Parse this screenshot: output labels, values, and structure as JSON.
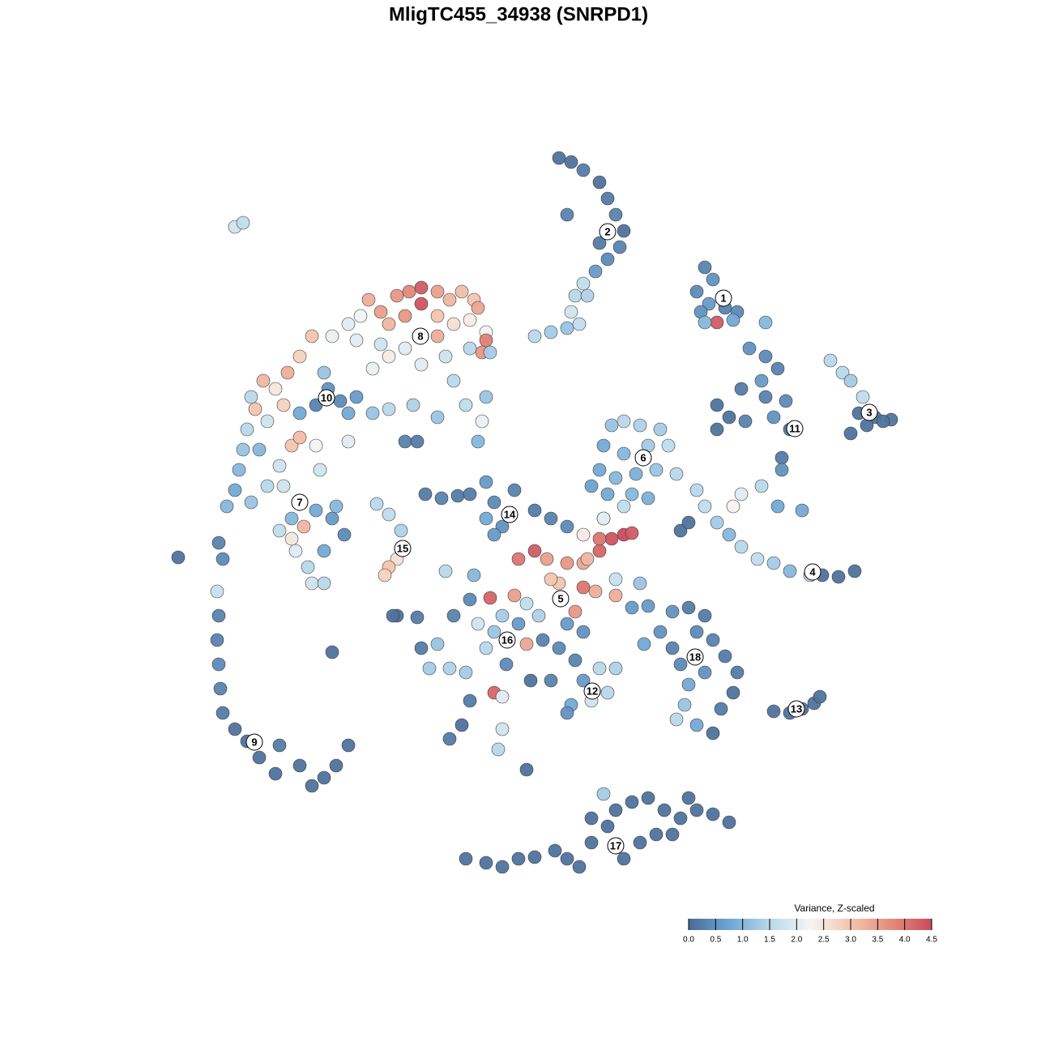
{
  "chart_data": {
    "type": "scatter",
    "title": "MligTC455_34938 (SNRPD1)",
    "colorbar_title": "Variance, Z-scaled",
    "xlim": [
      0,
      96
    ],
    "ylim": [
      0,
      96
    ],
    "clim": [
      0,
      4.5
    ],
    "colorbar_ticks": [
      {
        "value": 0,
        "label": "0.0"
      },
      0.5,
      {
        "value": 1,
        "label": "1.0"
      },
      1.5,
      {
        "value": 2,
        "label": "2.0"
      },
      2.5,
      {
        "value": 3,
        "label": "3.0"
      },
      3.5,
      {
        "value": 4,
        "label": "4.0"
      },
      4.5
    ],
    "colorscale": [
      {
        "value": 0,
        "color": "#4a6b95"
      },
      {
        "value": 0.75,
        "color": "#6ea6d4"
      },
      {
        "value": 1.5,
        "color": "#b8d8ea"
      },
      {
        "value": 2.25,
        "color": "#f5f5f5"
      },
      {
        "value": 3,
        "color": "#f3c5ae"
      },
      {
        "value": 3.75,
        "color": "#e48c7c"
      },
      {
        "value": 4.5,
        "color": "#c94b5b"
      }
    ],
    "x": [
      71,
      72,
      70,
      71.5,
      73.5,
      75,
      70.5,
      72.5,
      71,
      74.5,
      78.5,
      86.5,
      88,
      89,
      90.5,
      90,
      92,
      94,
      89,
      91,
      93,
      76.5,
      78.5,
      80,
      78,
      78.5,
      75.5,
      72.5,
      74,
      76,
      79.5,
      81,
      81.5,
      80.5,
      80.5,
      78,
      75.5,
      74.5,
      80,
      83,
      72.5,
      59.5,
      61,
      63,
      65.5,
      58.5,
      61,
      64,
      66.5,
      58,
      60,
      62.5,
      65,
      67.5,
      59,
      62,
      64,
      61,
      58.5,
      57,
      70,
      71,
      72.5,
      74,
      75.5,
      77.5,
      79.5,
      81.5,
      84,
      85.5,
      87.5,
      89.5,
      68,
      69,
      29.5,
      31,
      33,
      34.5,
      36,
      36,
      38,
      39.5,
      41,
      42.5,
      43,
      34,
      32,
      38,
      40,
      42,
      44,
      43.5,
      44,
      28.5,
      27,
      25,
      28,
      31,
      34,
      38,
      39,
      36,
      32,
      30,
      42,
      44.5,
      22.5,
      21,
      19.5,
      18,
      16.5,
      15,
      15.5,
      17,
      19,
      24,
      24.5,
      26,
      28,
      23,
      27,
      30,
      32,
      35,
      38,
      40,
      41.5,
      44,
      43.5,
      43,
      34,
      35.5,
      27,
      21,
      14.5,
      14,
      13.5,
      13,
      12,
      15,
      17,
      18.5,
      20,
      21,
      23,
      23.5,
      19,
      20,
      21.5,
      23,
      25,
      26.5,
      24,
      20,
      20.5,
      22,
      22.5,
      24,
      18.5,
      25.5,
      16,
      11,
      11.5,
      10.8,
      11,
      10.8,
      11,
      11.2,
      11.5,
      13,
      14.5,
      16,
      18,
      18.5,
      21,
      22.5,
      24,
      25.5,
      27,
      6,
      13,
      30.5,
      32,
      33.5,
      33,
      32,
      31.5,
      36.5,
      38.5,
      40.5,
      42,
      44,
      45,
      47.5,
      44,
      46,
      50,
      52,
      54,
      45,
      50,
      48,
      51.5,
      54,
      56,
      58,
      59.5,
      61,
      62,
      58,
      56.5,
      53,
      52,
      56,
      57.5,
      44.5,
      47.5,
      55,
      60,
      49,
      50.5,
      54,
      56,
      51,
      48,
      46,
      60,
      63,
      62,
      58.5,
      56,
      42,
      40,
      38,
      36,
      37,
      39.5,
      41.5,
      44,
      45,
      43,
      46.5,
      49,
      45,
      46,
      42,
      41,
      39.5,
      46,
      45.5,
      39,
      42.5,
      33,
      35.5,
      49.5,
      53,
      55,
      58,
      60,
      59,
      57,
      54.5,
      54,
      56,
      52,
      64,
      67,
      69,
      71,
      70,
      72,
      73.5,
      75,
      74.5,
      73,
      67,
      68,
      69,
      68.5,
      67.5,
      70,
      72,
      63.5,
      65.5,
      71,
      79.5,
      81.5,
      83,
      84.5,
      85.2,
      41.5,
      44,
      46,
      48,
      50,
      52.5,
      54,
      55.5,
      57,
      59,
      60,
      62,
      64,
      66,
      68,
      70,
      72,
      74,
      69,
      63,
      61,
      65,
      58.5,
      57,
      67,
      25,
      32.5,
      49,
      14,
      53,
      54.5,
      56,
      58,
      59,
      60,
      61,
      60.5,
      59,
      57.5,
      56,
      55,
      54.5,
      54,
      52,
      50,
      55.5,
      56.5,
      58,
      54
    ],
    "y": [
      79,
      77.5,
      76,
      74.5,
      74,
      73.5,
      73.5,
      72.2,
      72.2,
      72.5,
      72.2,
      67.5,
      66,
      65,
      63,
      61,
      60.5,
      60.2,
      58.5,
      59.5,
      60,
      69,
      68,
      66.5,
      65,
      63,
      64,
      62,
      60.5,
      60,
      60.5,
      62.5,
      59,
      55.5,
      54,
      52,
      51,
      49.5,
      49.5,
      49,
      59,
      59.5,
      60,
      59.5,
      59,
      57,
      56,
      57,
      57,
      54,
      53,
      53.5,
      54,
      53.5,
      51,
      51,
      50.5,
      49.5,
      48,
      52,
      51.5,
      49.5,
      47.5,
      46,
      44.5,
      43,
      42.5,
      41.5,
      41,
      41,
      40.8,
      41.5,
      46.5,
      47.5,
      75,
      73.5,
      75.5,
      76,
      76.5,
      74.5,
      76,
      75,
      76,
      75,
      74,
      73,
      72,
      73,
      72,
      72.5,
      71,
      68.5,
      70,
      73,
      72,
      70.5,
      70,
      69.5,
      69,
      70.5,
      68,
      67,
      68,
      66.5,
      69,
      68.5,
      70.5,
      68,
      66,
      64,
      65,
      63,
      61.5,
      60,
      62,
      66,
      64,
      62.5,
      63,
      62,
      61,
      61,
      61.5,
      62,
      60.5,
      65,
      62,
      63,
      60,
      57.5,
      57.5,
      57.5,
      57.5,
      61,
      59,
      56.5,
      54,
      51.5,
      49.5,
      50,
      52,
      54.5,
      57,
      58,
      57,
      54,
      52,
      48,
      47,
      49,
      48,
      46,
      44,
      45.5,
      44,
      42,
      40,
      40,
      46.5,
      49.5,
      56.5,
      45,
      43,
      39,
      36,
      33,
      30,
      27,
      24,
      22,
      20.5,
      18.5,
      16.5,
      20,
      17.5,
      15,
      16,
      17.5,
      20,
      43.2,
      84,
      49.8,
      48.5,
      46.5,
      43,
      42,
      41,
      51,
      50.5,
      50.8,
      51,
      52.5,
      50,
      51.5,
      48,
      47,
      49,
      48,
      47,
      46,
      44,
      43,
      43,
      42.5,
      42.5,
      44,
      45.5,
      46,
      46.2,
      45.5,
      43,
      40,
      40.5,
      39.5,
      39,
      38.2,
      38.5,
      36.5,
      38.5,
      37.5,
      36,
      35,
      34,
      33,
      35,
      36,
      40.5,
      40,
      37,
      48,
      46,
      38,
      36,
      32.5,
      32,
      29.5,
      29.5,
      29,
      32,
      34,
      35,
      30,
      32.5,
      26.5,
      26,
      25.5,
      22.5,
      20.8,
      22,
      19.5,
      41.5,
      41,
      36,
      35.8,
      28,
      32,
      30.5,
      29.5,
      29.5,
      26.5,
      25.5,
      25,
      24,
      28,
      28,
      37.2,
      36.5,
      37,
      36,
      34,
      33,
      31,
      29,
      26.5,
      24.5,
      32,
      30,
      27.5,
      25,
      23.2,
      22.5,
      21.5,
      32.5,
      34,
      29,
      24.2,
      24,
      24.5,
      25.2,
      26,
      6,
      5.5,
      5,
      6,
      6.2,
      7,
      6,
      5,
      8,
      10,
      12,
      13,
      13.5,
      12,
      11,
      12,
      11.5,
      10.5,
      13.5,
      8,
      6,
      9,
      14,
      11,
      9,
      31.5,
      36,
      17,
      84.5,
      92.5,
      92,
      91,
      89.5,
      87.5,
      85.5,
      83.5,
      81.5,
      80,
      78.5,
      77,
      75.5,
      73.5,
      71.5,
      71,
      70.5,
      72,
      75.5,
      82,
      85.5
    ],
    "values": [
      0.3,
      0.5,
      0.4,
      0.6,
      0.3,
      0.4,
      0.5,
      4.3,
      1.0,
      0.8,
      1.0,
      1.5,
      1.5,
      1.3,
      1.6,
      0.1,
      0.1,
      0.1,
      0.1,
      0.1,
      0.1,
      0.5,
      0.4,
      0.3,
      0.6,
      0.3,
      0.2,
      0.1,
      0.1,
      0.3,
      0.5,
      0.4,
      0.1,
      0.2,
      0.5,
      1.5,
      2.0,
      2.3,
      0.8,
      0.8,
      0.1,
      1.2,
      1.5,
      1.4,
      1.3,
      0.8,
      1.0,
      1.3,
      1.6,
      0.8,
      1.0,
      0.9,
      1.2,
      1.5,
      0.8,
      1.0,
      0.9,
      1.6,
      2.2,
      0.7,
      1.5,
      1.6,
      1.3,
      1.0,
      1.5,
      1.6,
      1.3,
      1.0,
      1.5,
      0.1,
      0.1,
      0.1,
      0.1,
      0.1,
      3.3,
      3.5,
      3.6,
      3.8,
      4.3,
      4.4,
      3.5,
      3.2,
      3.1,
      3.0,
      3.4,
      3.6,
      3.2,
      3.0,
      2.6,
      2.4,
      2.2,
      3.6,
      3.9,
      2.2,
      2.0,
      2.1,
      2.0,
      1.8,
      2.0,
      3.3,
      1.8,
      2.0,
      2.4,
      2.1,
      1.5,
      1.3,
      3.0,
      2.8,
      3.3,
      2.5,
      3.2,
      1.5,
      3.0,
      1.8,
      2.8,
      1.2,
      0.5,
      0.4,
      0.6,
      0.3,
      0.8,
      1.2,
      1.5,
      1.4,
      1.2,
      1.5,
      1.6,
      1.2,
      2.1,
      1.0,
      0.3,
      0.2,
      2.0,
      0.8,
      1.5,
      1.2,
      1.0,
      0.8,
      1.0,
      1.2,
      1.5,
      1.8,
      3.0,
      3.1,
      2.2,
      1.8,
      1.8,
      1.0,
      3.2,
      0.8,
      0.6,
      0.4,
      0.8,
      2.5,
      2.0,
      1.5,
      1.8,
      1.5,
      1.6,
      1.0,
      1.0,
      0.3,
      0.4,
      1.7,
      0.3,
      0.3,
      0.4,
      0.3,
      0.2,
      0.1,
      0.1,
      0.1,
      0.1,
      0.2,
      0.1,
      0.1,
      0.1,
      0.1,
      0.1,
      0.1,
      1.8,
      1.5,
      1.6,
      1.4,
      2.6,
      3.0,
      2.8,
      0.2,
      0.3,
      0.2,
      0.2,
      0.6,
      0.4,
      0.3,
      0.8,
      0.5,
      0.2,
      0.3,
      0.4,
      0.6,
      4.3,
      4.0,
      3.5,
      3.6,
      3.4,
      4.2,
      4.4,
      4.5,
      4.3,
      4.0,
      3.2,
      3.0,
      3.0,
      4.0,
      3.3,
      4.2,
      3.5,
      3.6,
      3.3,
      1.6,
      1.4,
      0.6,
      0.5,
      0.3,
      0.6,
      1.3,
      1.7,
      1.2,
      0.6,
      2.0,
      2.4,
      0.4,
      0.3,
      1.2,
      0.2,
      1.3,
      1.4,
      1.3,
      1.5,
      1.2,
      1.8,
      0.4,
      3.4,
      4.2,
      2.0,
      0.2,
      0.1,
      0.2,
      1.8,
      1.5,
      1.5,
      1.0,
      0.1,
      0.2,
      0.1,
      0.4,
      0.3,
      1.5,
      1.4,
      1.5,
      1.8,
      0.8,
      0.5,
      0.6,
      0.3,
      0.6,
      0.5,
      0.2,
      0.2,
      0.4,
      0.3,
      0.2,
      0.2,
      0.1,
      0.2,
      0.3,
      0.4,
      0.8,
      1.2,
      1.5,
      0.8,
      0.1,
      0.8,
      0.5,
      0.5,
      0.1,
      0.1,
      0.1,
      0.1,
      0.1,
      0.1,
      0.1,
      0.1,
      0.1,
      0.1,
      0.1,
      0.1,
      0.1,
      0.1,
      0.1,
      0.1,
      0.1,
      0.1,
      0.1,
      0.1,
      0.1,
      0.1,
      0.1,
      0.1,
      0.1,
      0.1,
      0.1,
      1.3,
      0.1,
      0.1,
      0.1,
      0.1,
      0.1,
      1.6,
      0.1,
      0.1,
      0.2,
      0.1,
      0.2,
      0.3,
      0.1,
      0.3,
      0.4,
      0.6,
      1.6,
      1.5,
      1.8,
      1.2,
      1.3,
      1.5,
      1.6,
      1.4,
      0.2,
      0.3
    ],
    "clusters": [
      {
        "label": "1",
        "x": 73.3,
        "y": 75.2
      },
      {
        "label": "2",
        "x": 59,
        "y": 83.4
      },
      {
        "label": "3",
        "x": 91.3,
        "y": 61.1
      },
      {
        "label": "4",
        "x": 84.3,
        "y": 41.4
      },
      {
        "label": "5",
        "x": 53.2,
        "y": 38.1
      },
      {
        "label": "6",
        "x": 63.4,
        "y": 55.5
      },
      {
        "label": "7",
        "x": 21,
        "y": 50
      },
      {
        "label": "8",
        "x": 35.9,
        "y": 70.5
      },
      {
        "label": "9",
        "x": 15.4,
        "y": 20.4
      },
      {
        "label": "10",
        "x": 24.3,
        "y": 62.9
      },
      {
        "label": "11",
        "x": 82.1,
        "y": 59.1
      },
      {
        "label": "12",
        "x": 57.1,
        "y": 26.7
      },
      {
        "label": "13",
        "x": 82.3,
        "y": 24.5
      },
      {
        "label": "14",
        "x": 46.9,
        "y": 48.5
      },
      {
        "label": "15",
        "x": 33.7,
        "y": 44.3
      },
      {
        "label": "16",
        "x": 46.6,
        "y": 33
      },
      {
        "label": "17",
        "x": 60,
        "y": 7.6
      },
      {
        "label": "18",
        "x": 69.8,
        "y": 30.9
      }
    ]
  }
}
